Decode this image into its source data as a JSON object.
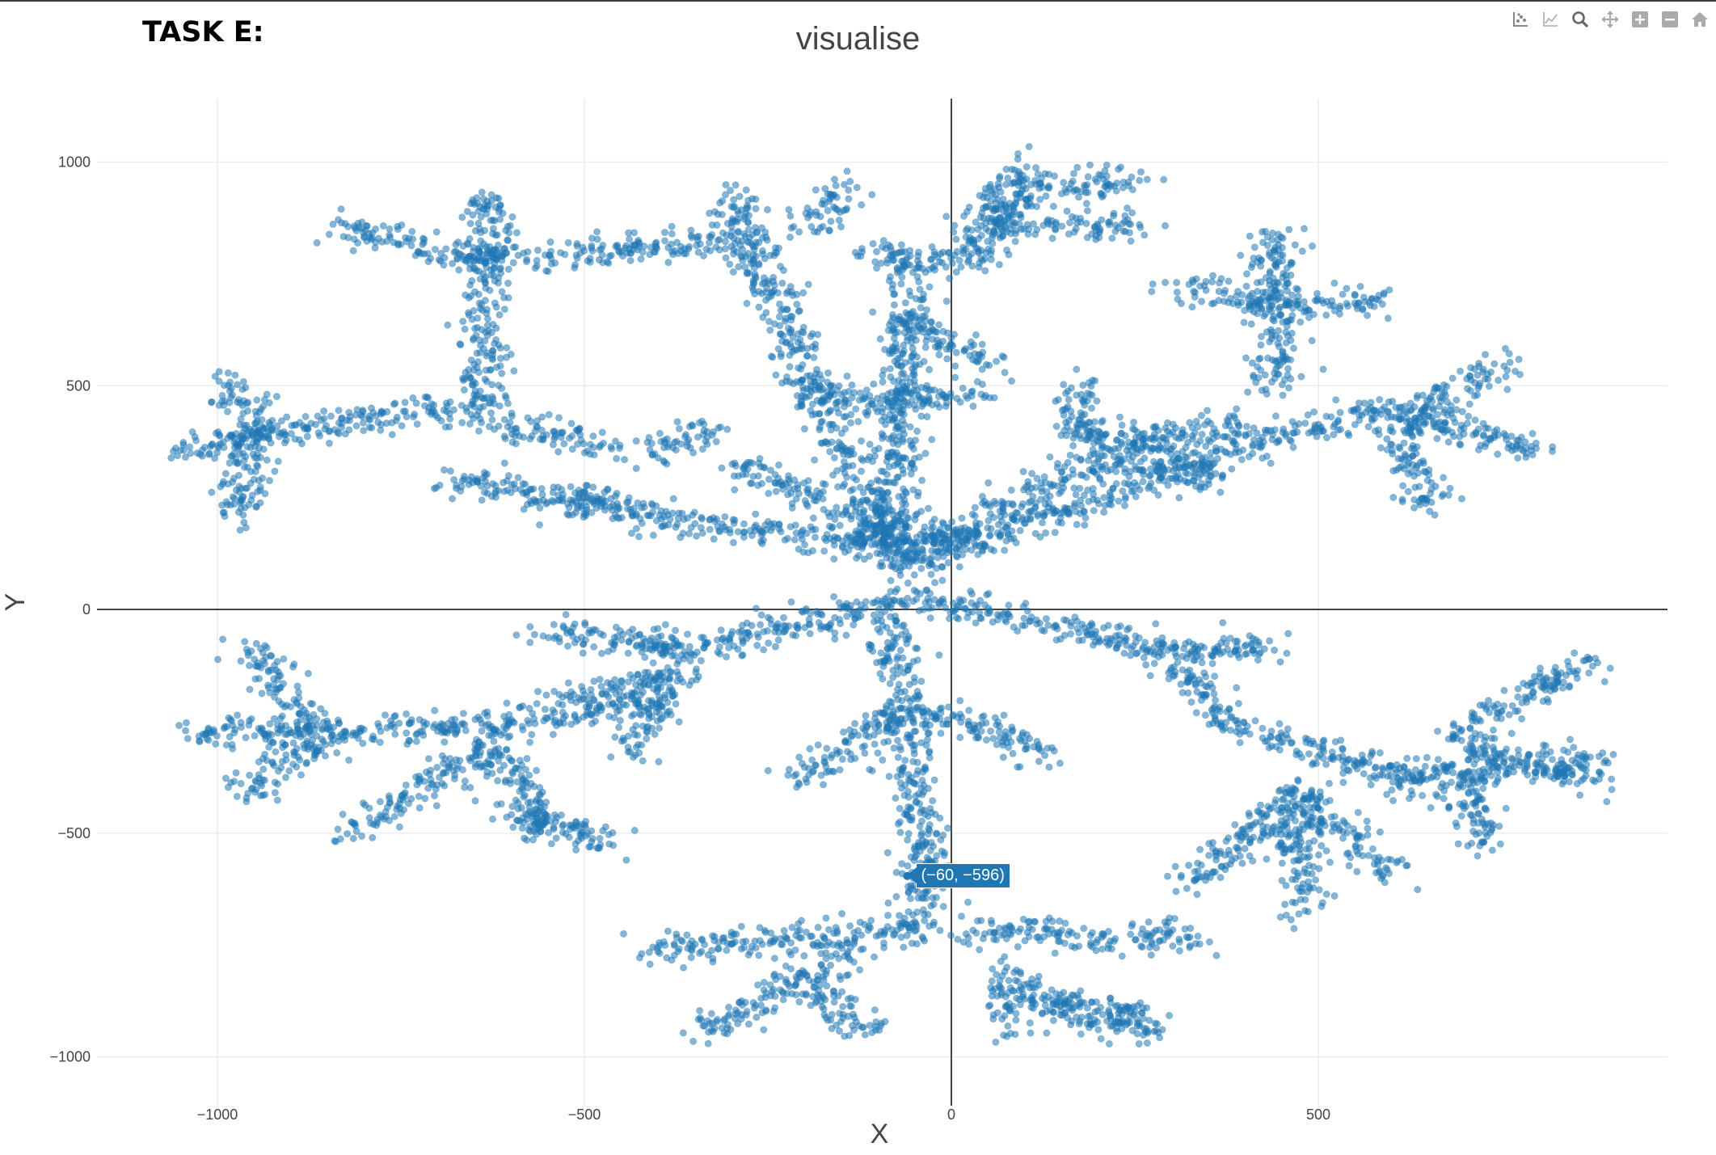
{
  "header": {
    "task_label": "TASK E:"
  },
  "modebar": {
    "buttons": [
      {
        "name": "compare-hover-button",
        "icon": "compare-icon"
      },
      {
        "name": "closest-hover-button",
        "icon": "closest-icon"
      },
      {
        "name": "zoom-button",
        "icon": "magnifier-icon"
      },
      {
        "name": "pan-button",
        "icon": "pan-arrows-icon"
      },
      {
        "name": "zoom-in-button",
        "icon": "plus-box-icon"
      },
      {
        "name": "zoom-out-button",
        "icon": "minus-box-icon"
      },
      {
        "name": "reset-axes-button",
        "icon": "home-icon"
      }
    ]
  },
  "hover": {
    "text": "(−60, −596)",
    "x": -60,
    "y": -596
  },
  "chart_data": {
    "type": "scatter",
    "title": "visualise",
    "xlabel": "X",
    "ylabel": "Y",
    "xlim": [
      -1000,
      1000
    ],
    "ylim": [
      -1000,
      1000
    ],
    "xticks": [
      -1000,
      -500,
      0,
      500
    ],
    "yticks": [
      -1000,
      -500,
      0,
      500,
      1000
    ],
    "xtick_labels": [
      "−1000",
      "−500",
      "0",
      "500"
    ],
    "ytick_labels": [
      "−1000",
      "−500",
      "0",
      "500",
      "1000"
    ],
    "grid": true,
    "marker_color": "#1f77b4",
    "marker_opacity": 0.55,
    "segments": [
      [
        -80,
        120,
        -60,
        800
      ],
      [
        -120,
        790,
        50,
        775
      ],
      [
        -60,
        650,
        60,
        540
      ],
      [
        -60,
        450,
        -210,
        500
      ],
      [
        -60,
        460,
        50,
        500
      ],
      [
        -60,
        160,
        80,
        160
      ],
      [
        -80,
        180,
        -300,
        320
      ],
      [
        -80,
        140,
        -560,
        240
      ],
      [
        -80,
        140,
        -130,
        180
      ],
      [
        -420,
        340,
        -320,
        400
      ],
      [
        -680,
        290,
        -460,
        240
      ],
      [
        -80,
        100,
        130,
        270
      ],
      [
        130,
        270,
        180,
        320
      ],
      [
        180,
        340,
        400,
        420
      ],
      [
        170,
        380,
        170,
        520
      ],
      [
        200,
        320,
        380,
        300
      ],
      [
        180,
        400,
        310,
        370
      ],
      [
        -80,
        120,
        -280,
        830
      ],
      [
        -280,
        830,
        -420,
        810
      ],
      [
        -420,
        810,
        -560,
        790
      ],
      [
        -560,
        790,
        -660,
        780
      ],
      [
        -660,
        780,
        -830,
        860
      ],
      [
        -280,
        830,
        -300,
        930
      ],
      [
        -190,
        840,
        -150,
        950
      ],
      [
        -630,
        930,
        -640,
        460
      ],
      [
        -640,
        460,
        -900,
        400
      ],
      [
        -900,
        400,
        -1060,
        350
      ],
      [
        -950,
        400,
        -970,
        190
      ],
      [
        -950,
        400,
        -980,
        520
      ],
      [
        -640,
        420,
        -470,
        370
      ],
      [
        50,
        860,
        260,
        860
      ],
      [
        50,
        860,
        90,
        1000
      ],
      [
        90,
        940,
        260,
        960
      ],
      [
        90,
        940,
        20,
        800
      ],
      [
        -60,
        100,
        430,
        380
      ],
      [
        430,
        380,
        600,
        450
      ],
      [
        600,
        450,
        800,
        350
      ],
      [
        600,
        400,
        650,
        230
      ],
      [
        600,
        400,
        760,
        560
      ],
      [
        440,
        480,
        440,
        840
      ],
      [
        440,
        680,
        600,
        690
      ],
      [
        440,
        680,
        300,
        720
      ],
      [
        -60,
        20,
        -370,
        -90
      ],
      [
        -370,
        -90,
        -420,
        -60
      ],
      [
        -370,
        -90,
        -560,
        -50
      ],
      [
        -370,
        -150,
        -530,
        -200
      ],
      [
        -370,
        -120,
        -440,
        -320
      ],
      [
        -420,
        -200,
        -620,
        -260
      ],
      [
        -620,
        -260,
        -860,
        -280
      ],
      [
        -860,
        -280,
        -960,
        -80
      ],
      [
        -860,
        -280,
        -970,
        -420
      ],
      [
        -860,
        -280,
        -1030,
        -270
      ],
      [
        -620,
        -300,
        -550,
        -500
      ],
      [
        -620,
        -300,
        -820,
        -500
      ],
      [
        -620,
        -450,
        -450,
        -520
      ],
      [
        -80,
        -20,
        -70,
        -230
      ],
      [
        -70,
        -230,
        -210,
        -380
      ],
      [
        -70,
        -230,
        20,
        -250
      ],
      [
        20,
        -250,
        130,
        -330
      ],
      [
        -70,
        -230,
        -30,
        -620
      ],
      [
        -30,
        -620,
        -60,
        -700
      ],
      [
        -40,
        -720,
        -420,
        -760
      ],
      [
        -130,
        -760,
        -330,
        -940
      ],
      [
        -200,
        -840,
        -100,
        -950
      ],
      [
        20,
        -720,
        340,
        -740
      ],
      [
        80,
        -800,
        80,
        -950
      ],
      [
        100,
        -870,
        280,
        -900
      ],
      [
        120,
        -880,
        280,
        -950
      ],
      [
        -60,
        40,
        300,
        -100
      ],
      [
        300,
        -100,
        450,
        -80
      ],
      [
        300,
        -100,
        380,
        -260
      ],
      [
        380,
        -260,
        620,
        -370
      ],
      [
        620,
        -370,
        660,
        -420
      ],
      [
        460,
        -400,
        480,
        -690
      ],
      [
        480,
        -420,
        320,
        -610
      ],
      [
        480,
        -420,
        600,
        -600
      ],
      [
        620,
        -370,
        880,
        -340
      ],
      [
        680,
        -280,
        880,
        -110
      ],
      [
        700,
        -340,
        730,
        -530
      ],
      [
        700,
        -300,
        890,
        -390
      ]
    ],
    "scatter_width": 32,
    "points_per_100_units": 48,
    "seed": 20240611
  }
}
